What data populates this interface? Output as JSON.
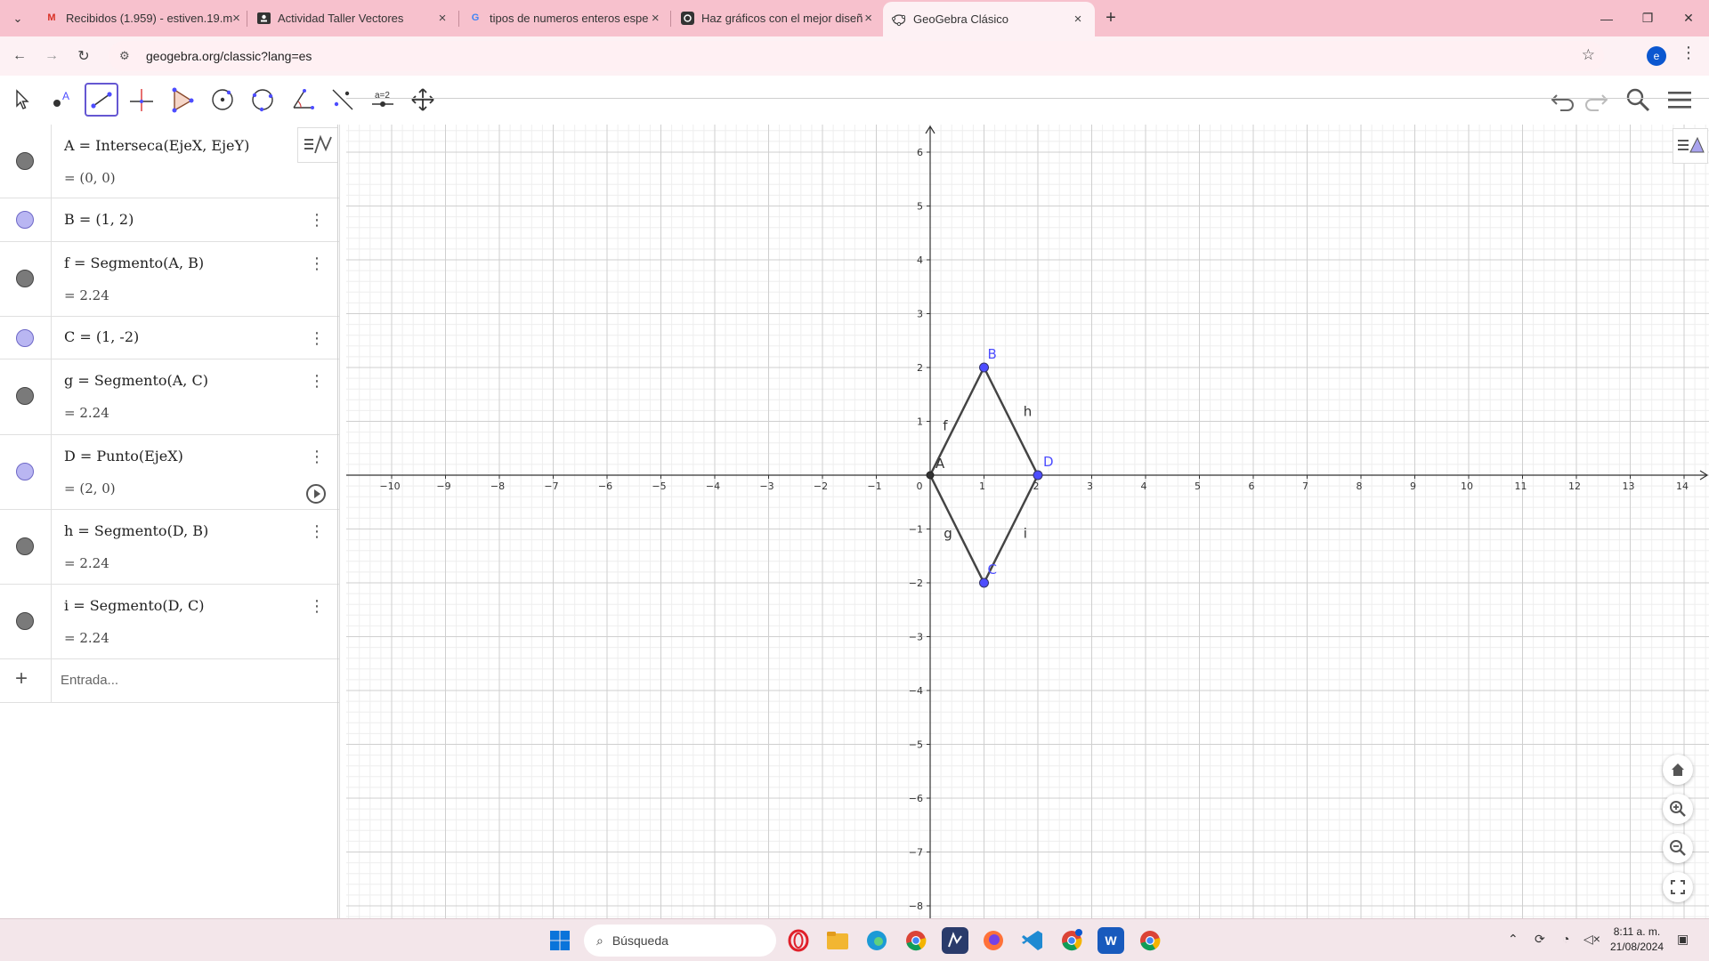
{
  "browser": {
    "tabs": [
      {
        "title": "Recibidos (1.959) - estiven.19.m",
        "icon": "gmail-icon"
      },
      {
        "title": "Actividad Taller Vectores",
        "icon": "classroom-icon"
      },
      {
        "title": "tipos de numeros enteros espe",
        "icon": "google-icon"
      },
      {
        "title": "Haz gráficos con el mejor diseñ",
        "icon": "canva-icon"
      },
      {
        "title": "GeoGebra Clásico",
        "icon": "geogebra-icon",
        "active": true
      }
    ],
    "url": "geogebra.org/classic?lang=es",
    "profile_initial": "e"
  },
  "algebra": {
    "rows": [
      {
        "line1": "A = Interseca(EjeX, EjeY)",
        "line2": "= (0, 0)",
        "color": "#7a7a7a"
      },
      {
        "line1": "B = (1, 2)",
        "line2": "",
        "color": "#b9b6f2"
      },
      {
        "line1": "f = Segmento(A, B)",
        "line2": "= 2.24",
        "color": "#7a7a7a"
      },
      {
        "line1": "C = (1, -2)",
        "line2": "",
        "color": "#b9b6f2"
      },
      {
        "line1": "g = Segmento(A, C)",
        "line2": "= 2.24",
        "color": "#7a7a7a"
      },
      {
        "line1": "D = Punto(EjeX)",
        "line2": "= (2, 0)",
        "color": "#b9b6f2"
      },
      {
        "line1": "h = Segmento(D, B)",
        "line2": "= 2.24",
        "color": "#7a7a7a"
      },
      {
        "line1": "i = Segmento(D, C)",
        "line2": "= 2.24",
        "color": "#7a7a7a"
      }
    ],
    "input_placeholder": "Entrada..."
  },
  "graph": {
    "x_ticks": [
      -10,
      -9,
      -8,
      -7,
      -6,
      -5,
      -4,
      -3,
      -2,
      -1,
      0,
      1,
      2,
      3,
      4,
      5,
      6,
      7,
      8,
      9,
      10,
      11,
      12,
      13,
      14
    ],
    "y_ticks": [
      6,
      5,
      4,
      3,
      2,
      1,
      -1,
      -2,
      -3,
      -4,
      -5,
      -6,
      -7,
      -8
    ],
    "points": [
      {
        "name": "A",
        "x": 0,
        "y": 0,
        "color": "#333333"
      },
      {
        "name": "B",
        "x": 1,
        "y": 2,
        "color": "#4d4dff"
      },
      {
        "name": "C",
        "x": 1,
        "y": -2,
        "color": "#4d4dff"
      },
      {
        "name": "D",
        "x": 2,
        "y": 0,
        "color": "#4d4dff"
      }
    ],
    "segments": [
      {
        "name": "f",
        "from": "A",
        "to": "B"
      },
      {
        "name": "g",
        "from": "A",
        "to": "C"
      },
      {
        "name": "h",
        "from": "D",
        "to": "B"
      },
      {
        "name": "i",
        "from": "D",
        "to": "C"
      }
    ]
  },
  "taskbar": {
    "search_placeholder": "Búsqueda",
    "time": "8:11 a. m.",
    "date": "21/08/2024"
  }
}
